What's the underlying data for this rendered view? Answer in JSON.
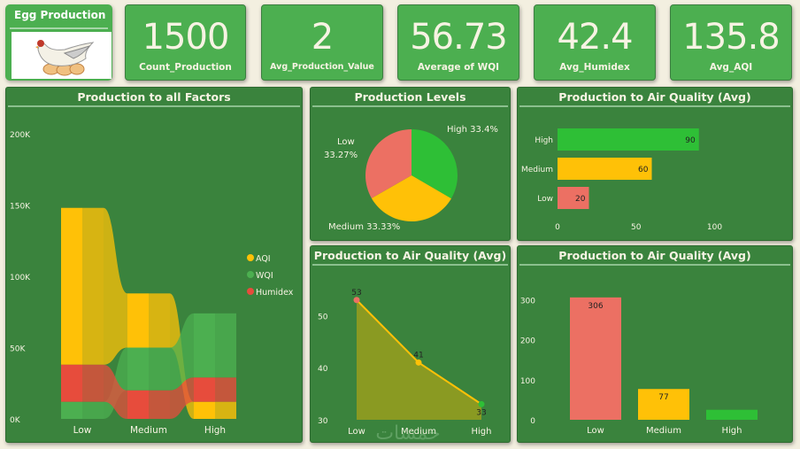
{
  "header": {
    "title": "Egg Production",
    "logo_icon": "hen-on-eggs-icon"
  },
  "kpis": [
    {
      "value": "1500",
      "label": "Count_Production"
    },
    {
      "value": "2",
      "label": "Avg_Production_Value"
    },
    {
      "value": "56.73",
      "label": "Average of WQI"
    },
    {
      "value": "42.4",
      "label": "Avg_Humidex"
    },
    {
      "value": "135.8",
      "label": "Avg_AQI"
    }
  ],
  "colors": {
    "aqi": "#ffc107",
    "wqi": "#4caf50",
    "humidex": "#e74c3c",
    "low": "#ec7063",
    "medium": "#ffc107",
    "high": "#2ebf36",
    "panel_bg": "#3a833d",
    "card_bg": "#4caf50"
  },
  "watermark": "خمسات",
  "chart_data": [
    {
      "type": "area",
      "subtype": "ribbon",
      "title": "Production to all Factors",
      "categories": [
        "Low",
        "Medium",
        "High"
      ],
      "yticks": [
        "0K",
        "50K",
        "100K",
        "150K",
        "200K"
      ],
      "ylim": [
        0,
        200000
      ],
      "legend": [
        "AQI",
        "WQI",
        "Humidex"
      ],
      "legend_position": "right",
      "series": [
        {
          "name": "AQI",
          "values": [
            110000,
            38000,
            12000
          ]
        },
        {
          "name": "WQI",
          "values": [
            12000,
            30000,
            45000
          ]
        },
        {
          "name": "Humidex",
          "values": [
            26000,
            20000,
            17000
          ]
        }
      ],
      "stack_order": {
        "Low": [
          "WQI",
          "Humidex",
          "AQI"
        ],
        "Medium": [
          "Humidex",
          "WQI",
          "AQI"
        ],
        "High": [
          "AQI",
          "Humidex",
          "WQI"
        ]
      }
    },
    {
      "type": "pie",
      "title": "Production Levels",
      "categories": [
        "High",
        "Medium",
        "Low"
      ],
      "values": [
        33.4,
        33.33,
        33.27
      ],
      "labels": [
        "High 33.4%",
        "Medium 33.33%",
        "Low 33.27%"
      ]
    },
    {
      "type": "bar",
      "orientation": "horizontal",
      "title": "Production to Air Quality (Avg)",
      "categories": [
        "High",
        "Medium",
        "Low"
      ],
      "values": [
        90,
        60,
        20
      ],
      "xticks": [
        "0",
        "50",
        "100"
      ],
      "xlim": [
        0,
        120
      ]
    },
    {
      "type": "line",
      "fill": true,
      "title": "Production to Air Quality (Avg)",
      "categories": [
        "Low",
        "Medium",
        "High"
      ],
      "values": [
        53,
        41,
        33
      ],
      "yticks": [
        "30",
        "40",
        "50"
      ],
      "ylim": [
        30,
        55
      ]
    },
    {
      "type": "bar",
      "title": "Production to Air Quality (Avg)",
      "categories": [
        "Low",
        "Medium",
        "High"
      ],
      "values": [
        306,
        77,
        25
      ],
      "data_labels": [
        "306",
        "77",
        ""
      ],
      "yticks": [
        "0",
        "100",
        "200",
        "300"
      ],
      "ylim": [
        0,
        330
      ]
    }
  ]
}
